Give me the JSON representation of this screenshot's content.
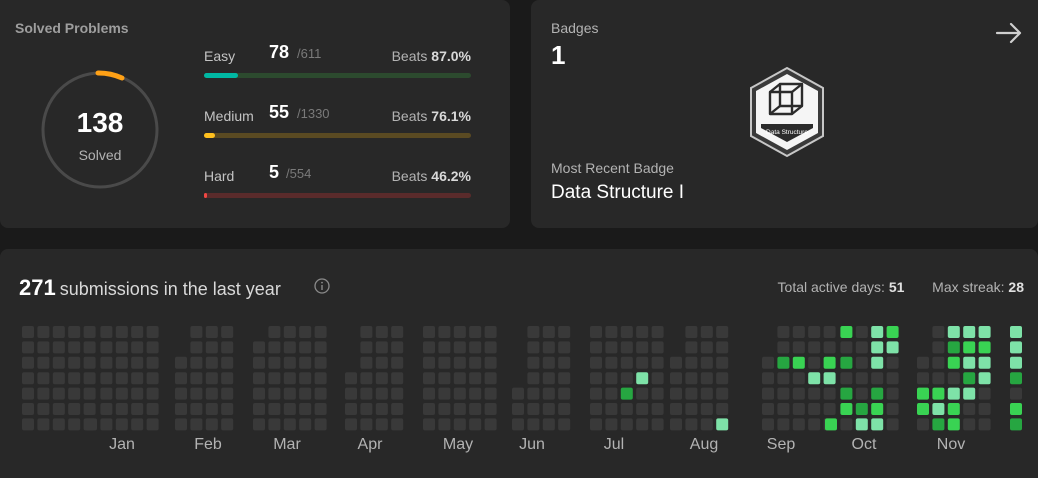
{
  "solved": {
    "title": "Solved Problems",
    "total": "138",
    "total_label": "Solved",
    "rows": [
      {
        "label": "Easy",
        "solved": "78",
        "total": "/611",
        "beats_label": "Beats",
        "beats": "87.0%",
        "progress": 0.128,
        "color": "#00b8a3",
        "track": "#2c4a2e"
      },
      {
        "label": "Medium",
        "solved": "55",
        "total": "/1330",
        "beats_label": "Beats",
        "beats": "76.1%",
        "progress": 0.041,
        "color": "#ffc01e",
        "track": "#5a4a22"
      },
      {
        "label": "Hard",
        "solved": "5",
        "total": "/554",
        "beats_label": "Beats",
        "beats": "46.2%",
        "progress": 0.009,
        "color": "#ef4743",
        "track": "#5a2b2b"
      }
    ]
  },
  "badges": {
    "title": "Badges",
    "count": "1",
    "recent_label": "Most Recent Badge",
    "recent_name": "Data Structure I",
    "badge_text": "Data Structure"
  },
  "calendar": {
    "count": "271",
    "text": "submissions in the last year",
    "active_label": "Total active days:",
    "active_value": "51",
    "streak_label": "Max streak:",
    "streak_value": "28",
    "months": [
      "Jan",
      "Feb",
      "Mar",
      "Apr",
      "May",
      "Jun",
      "Jul",
      "Aug",
      "Sep",
      "Oct",
      "Nov"
    ],
    "empty_color": "#393939",
    "level_colors": [
      "#0e4429",
      "#006d32",
      "#26a641",
      "#39d353",
      "#7ee2a8"
    ]
  }
}
